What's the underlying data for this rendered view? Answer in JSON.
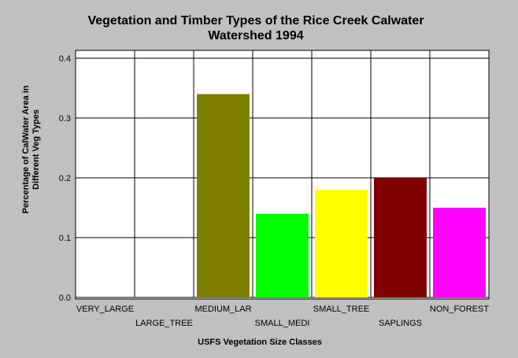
{
  "chart_data": {
    "type": "bar",
    "title": "Vegetation and Timber Types of the Rice Creek Calwater",
    "subtitle": "Watershed 1994",
    "xlabel": "USFS Vegetation Size Classes",
    "ylabel_line1": "Percentage of CalWater Area in",
    "ylabel_line2": "Different Veg Types",
    "ylim": [
      0,
      0.4
    ],
    "yticks": [
      "0.0",
      "0.1",
      "0.2",
      "0.3",
      "0.4"
    ],
    "ytick_values": [
      0,
      0.1,
      0.2,
      0.3,
      0.4
    ],
    "grid": true,
    "legend": "none",
    "categories": [
      "VERY_LARGE",
      "LARGE_TREE",
      "MEDIUM_LAR",
      "SMALL_MEDI",
      "SMALL_TREE",
      "SAPLINGS",
      "NON_FOREST"
    ],
    "values": [
      0,
      0,
      0.34,
      0.14,
      0.18,
      0.2,
      0.15
    ],
    "colors": [
      "#808000",
      "#808000",
      "#808000",
      "#00ff00",
      "#ffff00",
      "#800000",
      "#ff00ff"
    ]
  }
}
